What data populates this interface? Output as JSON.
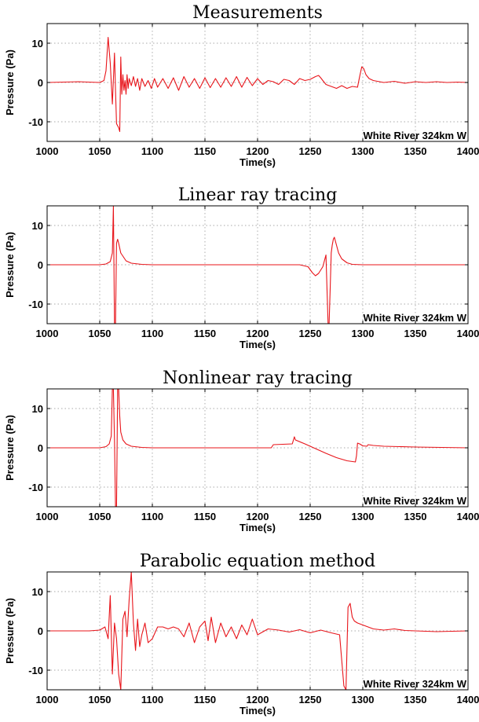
{
  "chart_data": [
    {
      "type": "line",
      "title": "Measurements",
      "xlabel": "Time(s)",
      "ylabel": "Pressure (Pa)",
      "annotation": "White River 324km W",
      "xlim": [
        1000,
        1400
      ],
      "ylim": [
        -15,
        15
      ],
      "xticks": [
        1000,
        1050,
        1100,
        1150,
        1200,
        1250,
        1300,
        1350,
        1400
      ],
      "yticks": [
        -10,
        0,
        10
      ],
      "grid": true,
      "series": [
        {
          "color": "#e8141a",
          "x": [
            1000,
            1030,
            1050,
            1054,
            1056,
            1058,
            1060,
            1062,
            1064,
            1065,
            1066,
            1068,
            1069,
            1070,
            1071,
            1072,
            1073,
            1074,
            1075,
            1076,
            1077,
            1078,
            1080,
            1082,
            1084,
            1086,
            1088,
            1090,
            1093,
            1096,
            1099,
            1102,
            1105,
            1110,
            1115,
            1120,
            1125,
            1130,
            1135,
            1140,
            1145,
            1150,
            1155,
            1160,
            1165,
            1170,
            1175,
            1180,
            1185,
            1190,
            1195,
            1200,
            1205,
            1210,
            1215,
            1220,
            1225,
            1230,
            1235,
            1240,
            1245,
            1250,
            1255,
            1258,
            1260,
            1262,
            1265,
            1270,
            1275,
            1280,
            1285,
            1290,
            1295,
            1297,
            1299,
            1301,
            1303,
            1306,
            1310,
            1320,
            1330,
            1340,
            1350,
            1360,
            1370,
            1380,
            1390,
            1400
          ],
          "y": [
            0,
            0.2,
            0,
            0.5,
            3,
            11.5,
            5,
            -5.5,
            7.5,
            -2,
            -10.5,
            -11.5,
            -12.5,
            6.5,
            -3,
            2,
            -2,
            0.5,
            -3,
            2,
            -1.5,
            1,
            -0.8,
            1.5,
            -1,
            1,
            -2,
            1,
            -1,
            0.5,
            -1.5,
            1,
            -1.2,
            1,
            -1.5,
            1.2,
            -2,
            1.5,
            -1.2,
            1,
            -1.5,
            1.2,
            -1.3,
            1,
            -1.2,
            1.2,
            -1,
            1.5,
            -1.2,
            1.3,
            -0.8,
            1,
            -0.5,
            0.5,
            0.2,
            -0.5,
            0.8,
            0.5,
            -0.5,
            1,
            0.5,
            0.8,
            1.5,
            1.8,
            1.2,
            0.5,
            -0.5,
            -1,
            -1.5,
            -0.8,
            -1.5,
            -1,
            -1.2,
            1.5,
            4,
            3.5,
            2,
            1,
            0.5,
            0,
            0.3,
            -0.2,
            0.2,
            0,
            0.2,
            0,
            0.1,
            0
          ]
        }
      ]
    },
    {
      "type": "line",
      "title": "Linear ray tracing",
      "xlabel": "Time(s)",
      "ylabel": "Pressure (Pa)",
      "annotation": "White River 324km W",
      "xlim": [
        1000,
        1400
      ],
      "ylim": [
        -15,
        15
      ],
      "xticks": [
        1000,
        1050,
        1100,
        1150,
        1200,
        1250,
        1300,
        1350,
        1400
      ],
      "yticks": [
        -10,
        0,
        10
      ],
      "grid": true,
      "series": [
        {
          "color": "#e8141a",
          "x": [
            1000,
            1050,
            1056,
            1060,
            1062,
            1063,
            1064,
            1065,
            1066,
            1067,
            1068,
            1070,
            1075,
            1080,
            1090,
            1100,
            1150,
            1200,
            1240,
            1248,
            1252,
            1255,
            1258,
            1262,
            1265,
            1267,
            1268,
            1269,
            1270,
            1271,
            1272,
            1273,
            1275,
            1277,
            1280,
            1285,
            1290,
            1300,
            1350,
            1400
          ],
          "y": [
            0,
            0,
            0.2,
            0.8,
            3,
            15,
            -15,
            -15,
            5.5,
            6.5,
            5.5,
            3,
            1,
            0.4,
            0.1,
            0,
            0,
            0,
            0,
            -0.5,
            -2,
            -2.8,
            -2.2,
            -0.5,
            2.5,
            -15,
            -15,
            -6,
            3,
            5,
            6.5,
            7,
            5,
            3,
            1.5,
            0.5,
            0.1,
            0,
            0,
            0
          ]
        }
      ]
    },
    {
      "type": "line",
      "title": "Nonlinear ray tracing",
      "xlabel": "Time(s)",
      "ylabel": "Pressure (Pa)",
      "annotation": "White River 324km W",
      "xlim": [
        1000,
        1400
      ],
      "ylim": [
        -15,
        15
      ],
      "xticks": [
        1000,
        1050,
        1100,
        1150,
        1200,
        1250,
        1300,
        1350,
        1400
      ],
      "yticks": [
        -10,
        0,
        10
      ],
      "grid": true,
      "series": [
        {
          "color": "#e8141a",
          "x": [
            1000,
            1050,
            1056,
            1059,
            1061,
            1062,
            1063,
            1064,
            1065,
            1066,
            1067,
            1068,
            1069,
            1070,
            1072,
            1075,
            1080,
            1090,
            1100,
            1150,
            1200,
            1213,
            1215,
            1233,
            1235,
            1236,
            1245,
            1255,
            1265,
            1275,
            1285,
            1293,
            1294,
            1295,
            1297,
            1300,
            1304,
            1305,
            1310,
            1320,
            1350,
            1400
          ],
          "y": [
            0,
            0,
            0.3,
            1,
            3,
            15,
            15,
            2,
            -15,
            -15,
            15,
            15,
            8,
            4,
            2,
            1,
            0.4,
            0.1,
            0,
            0,
            0,
            0,
            0.8,
            1,
            2.8,
            2,
            1,
            -0.2,
            -1.4,
            -2.5,
            -3.3,
            -3.6,
            -2,
            1.2,
            1,
            0.5,
            0.4,
            0.8,
            0.6,
            0.4,
            0.2,
            0
          ]
        }
      ]
    },
    {
      "type": "line",
      "title": "Parabolic equation method",
      "xlabel": "Time(s)",
      "ylabel": "Pressure (Pa)",
      "annotation": "White River 324km W",
      "xlim": [
        1000,
        1400
      ],
      "ylim": [
        -15,
        15
      ],
      "xticks": [
        1000,
        1050,
        1100,
        1150,
        1200,
        1250,
        1300,
        1350,
        1400
      ],
      "yticks": [
        -10,
        0,
        10
      ],
      "grid": true,
      "series": [
        {
          "color": "#e8141a",
          "x": [
            1000,
            1040,
            1050,
            1055,
            1058,
            1060,
            1062,
            1064,
            1066,
            1068,
            1070,
            1072,
            1074,
            1076,
            1078,
            1080,
            1082,
            1084,
            1086,
            1088,
            1090,
            1093,
            1096,
            1100,
            1105,
            1110,
            1115,
            1120,
            1125,
            1130,
            1135,
            1140,
            1145,
            1150,
            1153,
            1156,
            1160,
            1165,
            1170,
            1175,
            1180,
            1185,
            1190,
            1195,
            1200,
            1210,
            1220,
            1230,
            1240,
            1250,
            1260,
            1270,
            1278,
            1282,
            1284,
            1286,
            1288,
            1290,
            1292,
            1295,
            1300,
            1310,
            1320,
            1330,
            1340,
            1350,
            1370,
            1400
          ],
          "y": [
            0,
            0,
            0.2,
            1,
            -2,
            9,
            -11,
            2,
            -2,
            -11,
            -15,
            3,
            5,
            -1.5,
            8,
            15,
            2,
            -5,
            3,
            -4,
            -1,
            2,
            -3,
            -2,
            1,
            1,
            0.5,
            1,
            0.5,
            -1.5,
            2,
            -3,
            1,
            2.5,
            -2.5,
            3.5,
            -3,
            2,
            -1.5,
            1,
            -2,
            1.5,
            -1,
            3,
            -1,
            0.5,
            0.2,
            -0.3,
            0.3,
            -0.5,
            0.2,
            -0.5,
            -1,
            -14,
            -15,
            6,
            7,
            3.5,
            2.5,
            2,
            1.5,
            0.5,
            0.2,
            0.5,
            0.1,
            0,
            -0.2,
            0
          ]
        }
      ]
    }
  ]
}
